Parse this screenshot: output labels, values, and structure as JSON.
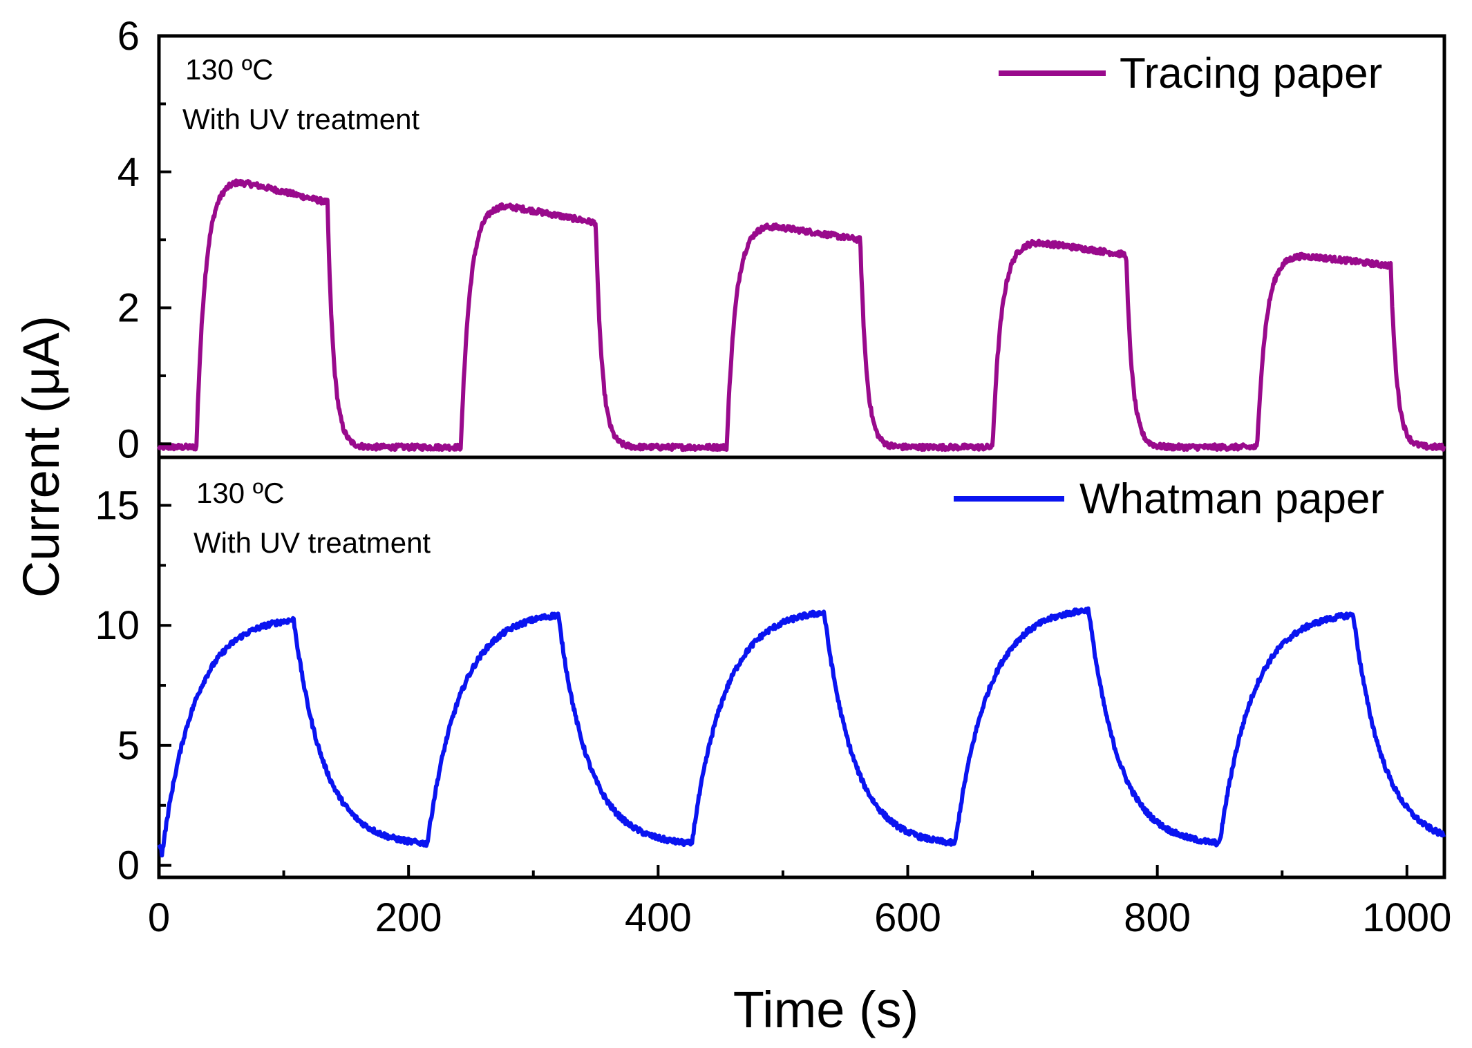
{
  "chart_data": [
    {
      "type": "line",
      "panel": "top",
      "ylabel": "Current (μA)",
      "ylim": [
        -0.2,
        6
      ],
      "xlim": [
        0,
        1030
      ],
      "yticks": [
        0,
        2,
        4,
        6
      ],
      "tick_labels": [
        "0",
        "2",
        "4",
        "6"
      ],
      "annotations": [
        "130 ºC",
        "With UV treatment"
      ],
      "legend_position": "top-right",
      "series": [
        {
          "name": "Tracing paper",
          "color": "#990a8c",
          "cycles": [
            {
              "on": 30,
              "off": 135,
              "peak": 3.88,
              "end": 3.55
            },
            {
              "on": 242,
              "off": 350,
              "peak": 3.52,
              "end": 3.25
            },
            {
              "on": 455,
              "off": 562,
              "peak": 3.22,
              "end": 3.0
            },
            {
              "on": 668,
              "off": 775,
              "peak": 2.98,
              "end": 2.78
            },
            {
              "on": 880,
              "off": 987,
              "peak": 2.78,
              "end": 2.62
            }
          ],
          "baseline": -0.05
        }
      ]
    },
    {
      "type": "line",
      "panel": "bottom",
      "xlabel": "Time (s)",
      "ylabel": "Current (μA)",
      "ylim": [
        -0.5,
        17
      ],
      "xlim": [
        0,
        1030
      ],
      "xticks": [
        0,
        200,
        400,
        600,
        800,
        1000
      ],
      "yticks": [
        0,
        5,
        10,
        15
      ],
      "x_tick_labels": [
        "0",
        "200",
        "400",
        "600",
        "800",
        "1000"
      ],
      "y_tick_labels": [
        "0",
        "5",
        "10",
        "15"
      ],
      "annotations": [
        "130 ºC",
        "With UV treatment"
      ],
      "legend_position": "top-right",
      "series": [
        {
          "name": "Whatman paper",
          "color": "#0a14f0",
          "cycles": [
            {
              "on": 2,
              "off": 108,
              "peak": 10.4
            },
            {
              "on": 215,
              "off": 320,
              "peak": 10.6
            },
            {
              "on": 427,
              "off": 533,
              "peak": 10.7
            },
            {
              "on": 638,
              "off": 745,
              "peak": 10.8
            },
            {
              "on": 850,
              "off": 957,
              "peak": 10.6
            }
          ],
          "low": 0.8
        }
      ]
    }
  ]
}
